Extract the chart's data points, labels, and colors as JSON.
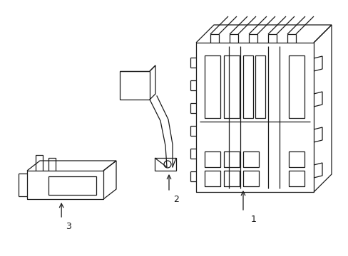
{
  "bg_color": "#ffffff",
  "line_color": "#1a1a1a",
  "line_width": 0.9,
  "fig_width": 4.89,
  "fig_height": 3.6,
  "dpi": 100
}
